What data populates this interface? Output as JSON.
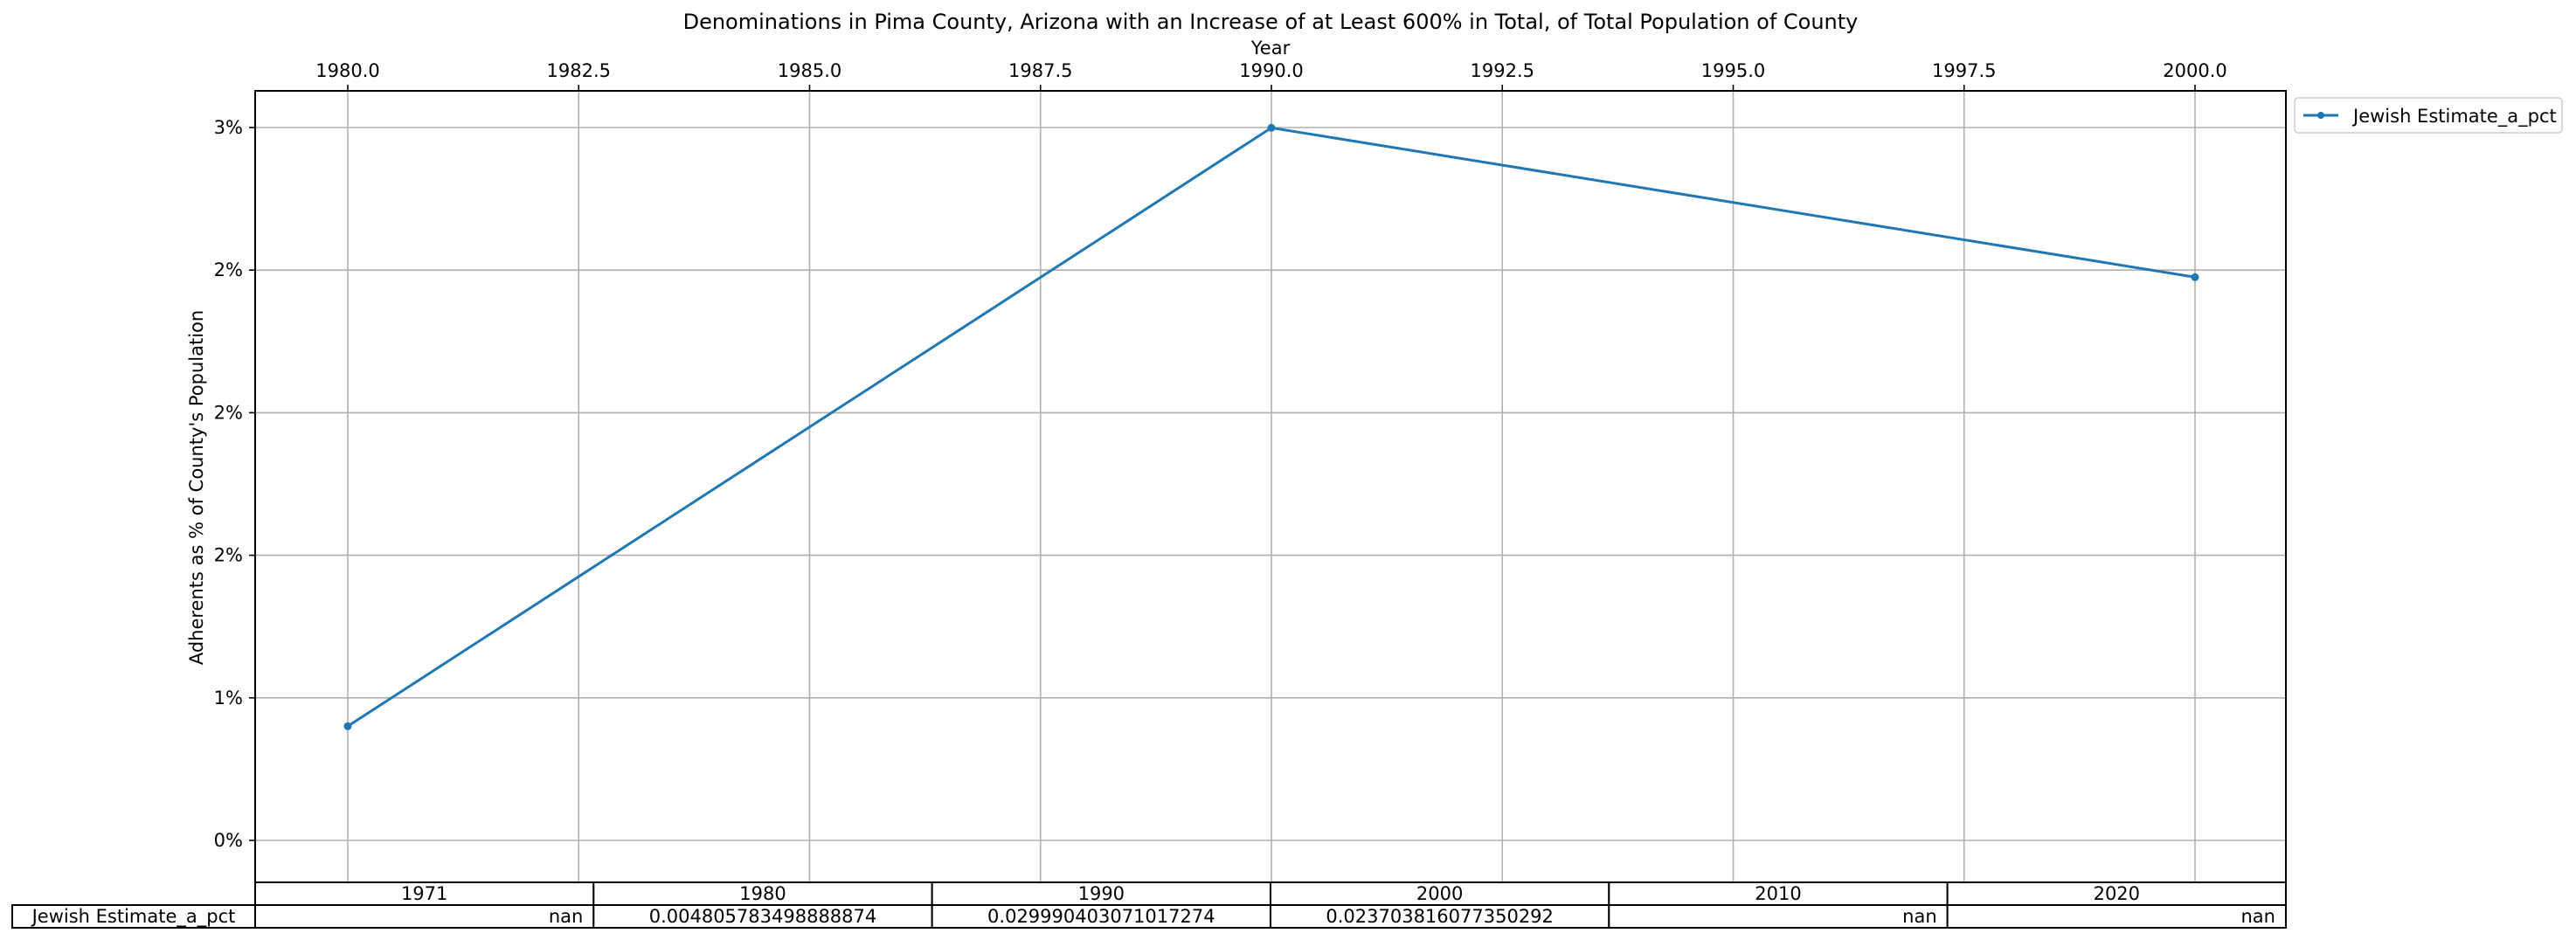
{
  "chart_data": {
    "type": "line",
    "title": "Denominations in Pima County, Arizona with an Increase of at Least 600% in Total, of Total Population of County",
    "xlabel": "Year",
    "ylabel": "Adherents as % of County's Population",
    "x_ticks": [
      "1980.0",
      "1982.5",
      "1985.0",
      "1987.5",
      "1990.0",
      "1992.5",
      "1995.0",
      "1997.5",
      "2000.0"
    ],
    "y_ticks": [
      "0%",
      "1%",
      "2%",
      "2%",
      "2%",
      "3%"
    ],
    "grid": true,
    "legend_position": "outside-top-right",
    "series": [
      {
        "name": "Jewish Estimate_a_pct",
        "color": "#1f77b4",
        "x": [
          1980,
          1990,
          2000
        ],
        "y": [
          0.004805783498888874,
          0.029990403071017274,
          0.023703816077350292
        ]
      }
    ],
    "table": {
      "columns": [
        "1971",
        "1980",
        "1990",
        "2000",
        "2010",
        "2020"
      ],
      "row_label": "Jewish Estimate_a_pct",
      "cells": [
        "nan",
        "0.004805783498888874",
        "0.029990403071017274",
        "0.023703816077350292",
        "nan",
        "nan"
      ]
    }
  }
}
